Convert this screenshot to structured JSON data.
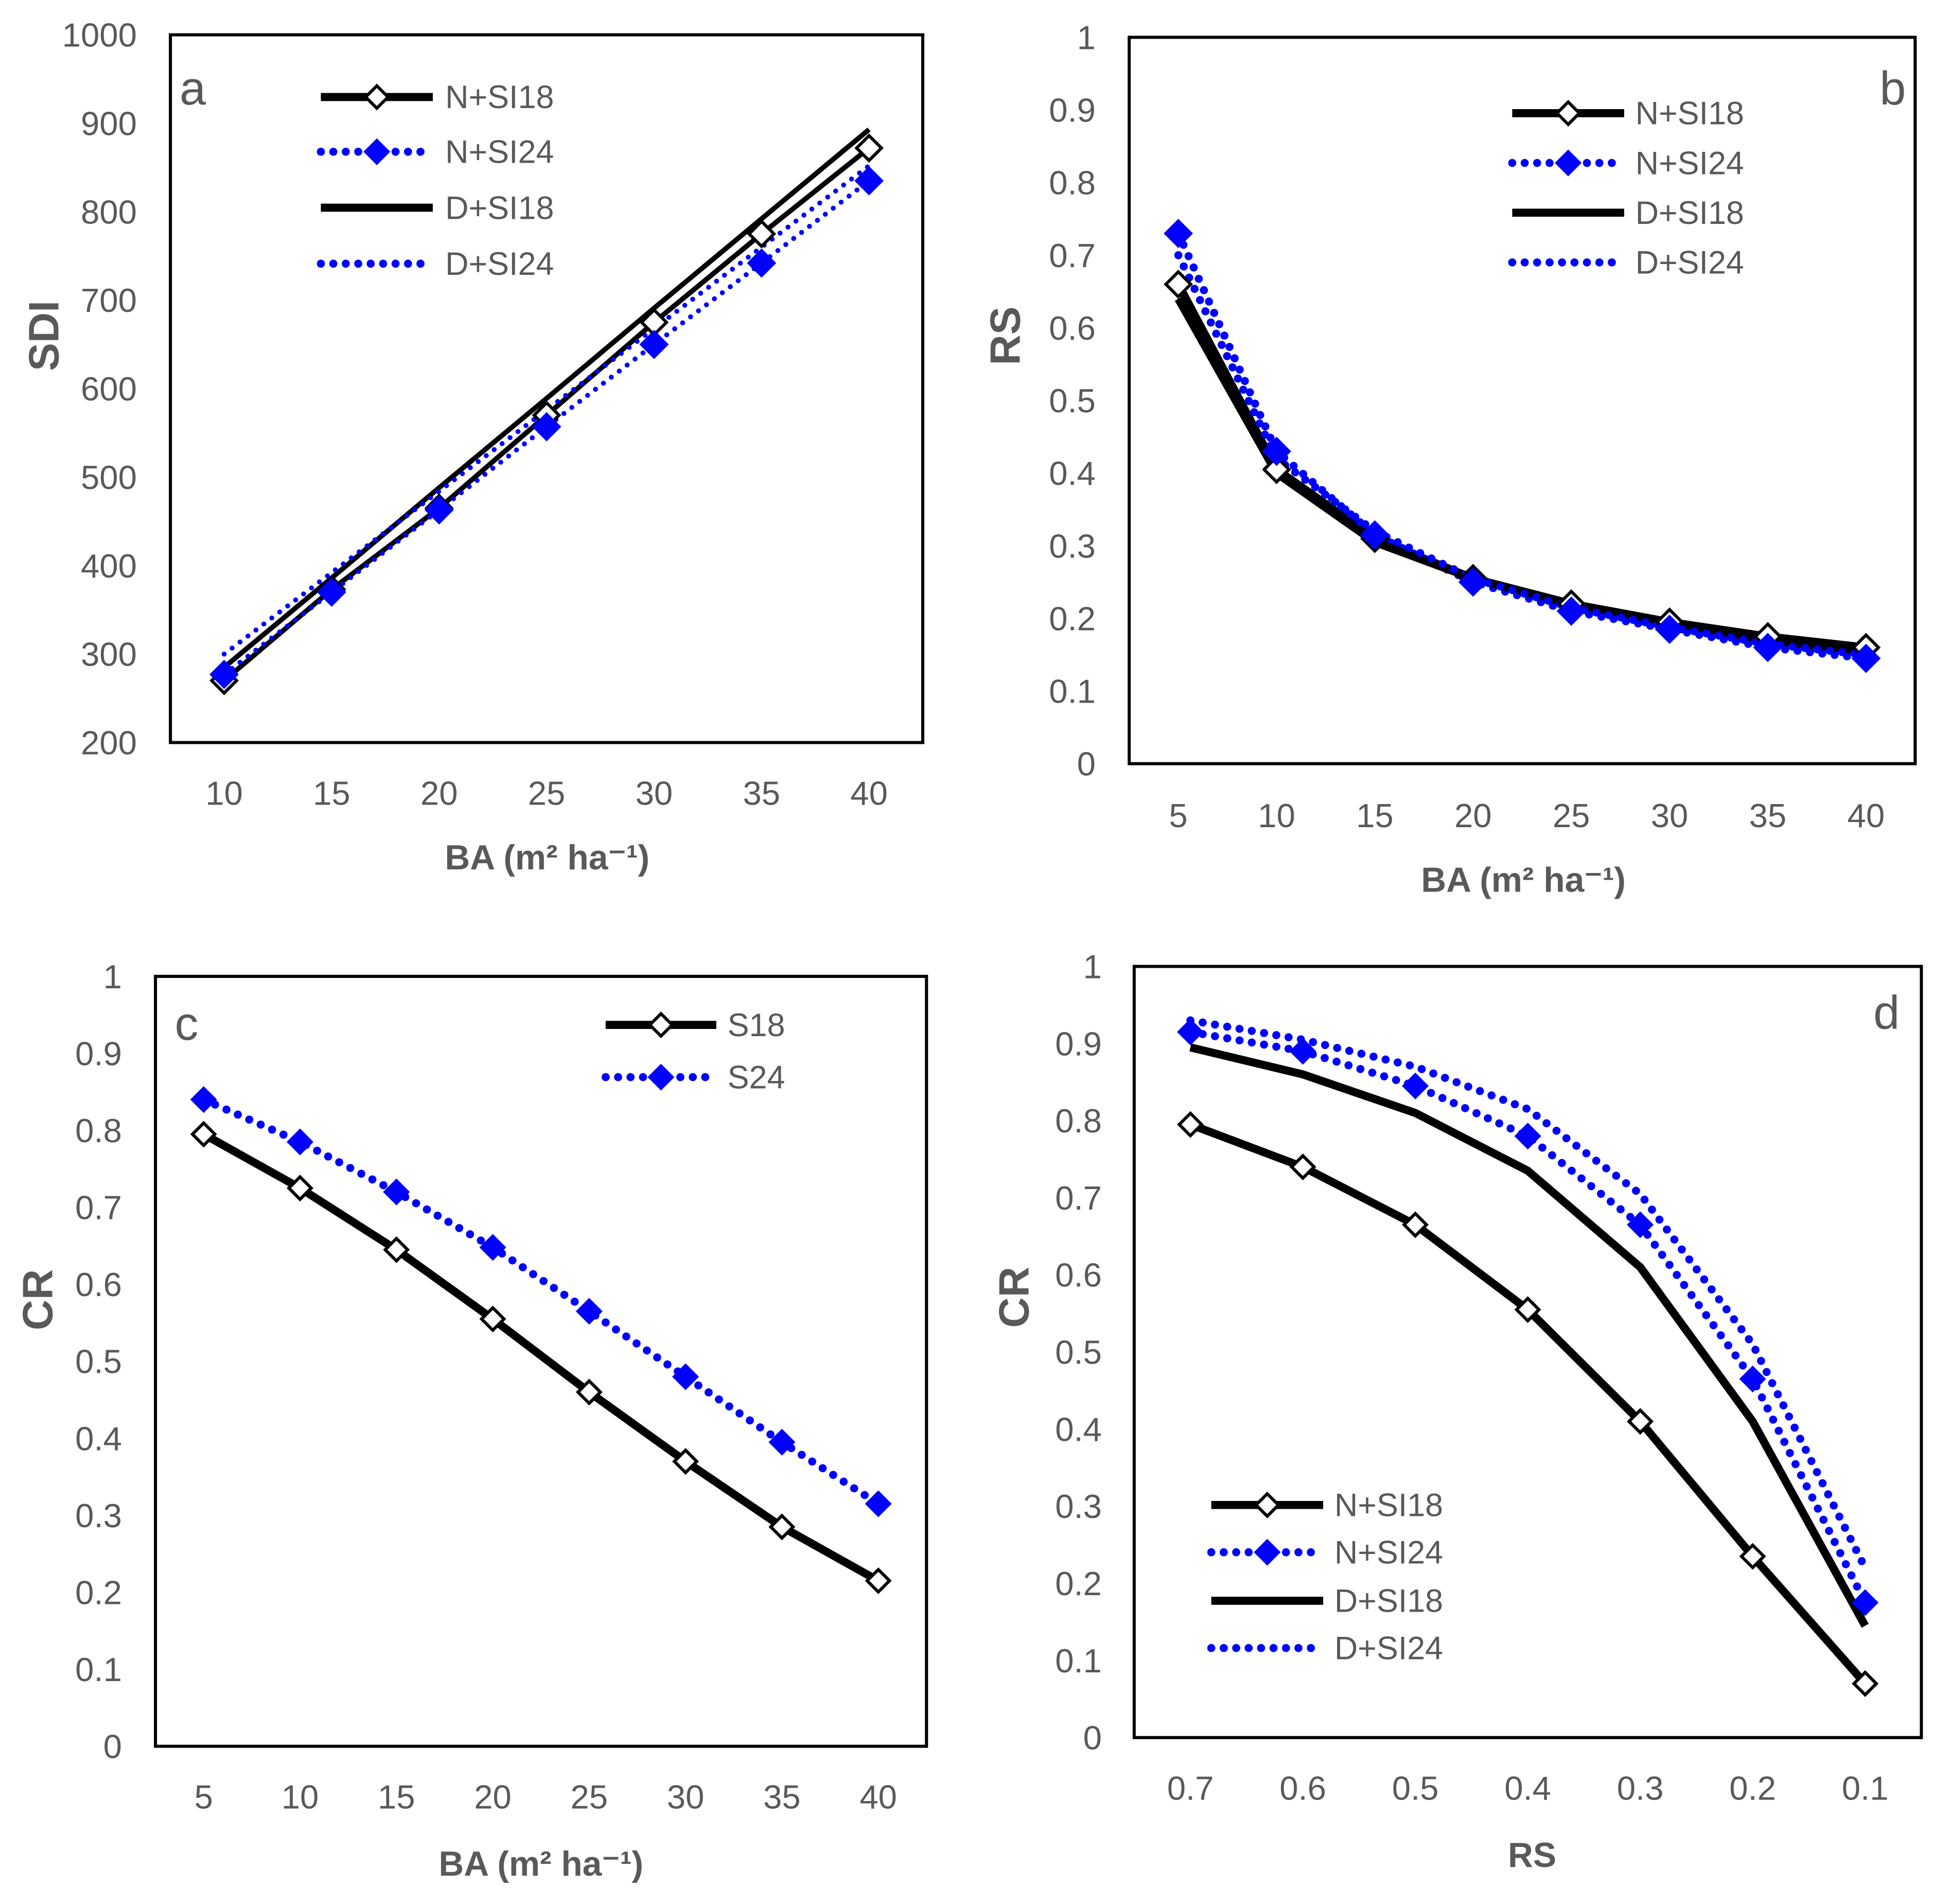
{
  "style": {
    "text_color": "#595959",
    "frame_color": "#000000"
  },
  "chart_data": [
    {
      "panel_label": "a",
      "type": "line",
      "xlabel": "BA (m² ha⁻¹)",
      "ylabel": "SDI",
      "categories": [
        "10",
        "15",
        "20",
        "25",
        "30",
        "35",
        "40"
      ],
      "yticks": [
        "200",
        "300",
        "400",
        "500",
        "600",
        "700",
        "800",
        "900",
        "1000"
      ],
      "ylim": [
        200,
        1000
      ],
      "series": [
        {
          "name": "N+SI18",
          "values": [
            270,
            373,
            465,
            570,
            675,
            775,
            872
          ],
          "color": "#000000",
          "dotted": false,
          "marker": true,
          "marker_fill": "#FFFFFF"
        },
        {
          "name": "N+SI24",
          "values": [
            277,
            370,
            463,
            557,
            650,
            742,
            835
          ],
          "color": "#0000FF",
          "dotted": true,
          "marker": true,
          "marker_fill": "#0000FF"
        },
        {
          "name": "D+SI18",
          "values": [
            285,
            386,
            488,
            589,
            691,
            792,
            893
          ],
          "color": "#000000",
          "dotted": false,
          "marker": false
        },
        {
          "name": "D+SI24",
          "values": [
            300,
            392,
            484,
            576,
            668,
            760,
            852
          ],
          "color": "#0000FF",
          "dotted": true,
          "marker": false
        }
      ]
    },
    {
      "panel_label": "b",
      "type": "line",
      "xlabel": "BA (m² ha⁻¹)",
      "ylabel": "RS",
      "categories": [
        "5",
        "10",
        "15",
        "20",
        "25",
        "30",
        "35",
        "40"
      ],
      "yticks": [
        "0",
        "0.1",
        "0.2",
        "0.3",
        "0.4",
        "0.5",
        "0.6",
        "0.7",
        "0.8",
        "0.9",
        "1"
      ],
      "ylim": [
        0,
        1
      ],
      "series": [
        {
          "name": "N+SI18",
          "values": [
            0.66,
            0.405,
            0.31,
            0.255,
            0.22,
            0.195,
            0.175,
            0.16
          ],
          "color": "#000000",
          "dotted": false,
          "marker": true,
          "marker_fill": "#FFFFFF"
        },
        {
          "name": "N+SI24",
          "values": [
            0.73,
            0.43,
            0.315,
            0.25,
            0.21,
            0.185,
            0.16,
            0.145
          ],
          "color": "#0000FF",
          "dotted": true,
          "marker": true,
          "marker_fill": "#0000FF"
        },
        {
          "name": "D+SI18",
          "values": [
            0.64,
            0.4,
            0.305,
            0.255,
            0.22,
            0.195,
            0.17,
            0.155
          ],
          "color": "#000000",
          "dotted": false,
          "marker": false
        },
        {
          "name": "D+SI24",
          "values": [
            0.7,
            0.42,
            0.32,
            0.255,
            0.215,
            0.188,
            0.165,
            0.15
          ],
          "color": "#0000FF",
          "dotted": true,
          "marker": false
        }
      ]
    },
    {
      "panel_label": "c",
      "type": "line",
      "xlabel": "BA (m² ha⁻¹)",
      "ylabel": "CR",
      "categories": [
        "5",
        "10",
        "15",
        "20",
        "25",
        "30",
        "35",
        "40"
      ],
      "yticks": [
        "0",
        "0.1",
        "0.2",
        "0.3",
        "0.4",
        "0.5",
        "0.6",
        "0.7",
        "0.8",
        "0.9",
        "1"
      ],
      "ylim": [
        0,
        1
      ],
      "series": [
        {
          "name": "S18",
          "values": [
            0.795,
            0.725,
            0.645,
            0.555,
            0.46,
            0.37,
            0.285,
            0.215
          ],
          "color": "#000000",
          "dotted": false,
          "marker": true,
          "marker_fill": "#FFFFFF"
        },
        {
          "name": "S24",
          "values": [
            0.84,
            0.785,
            0.72,
            0.648,
            0.565,
            0.48,
            0.395,
            0.315
          ],
          "color": "#0000FF",
          "dotted": true,
          "marker": true,
          "marker_fill": "#0000FF"
        }
      ]
    },
    {
      "panel_label": "d",
      "type": "line",
      "xlabel": "RS",
      "ylabel": "CR",
      "categories": [
        "0.7",
        "0.6",
        "0.5",
        "0.4",
        "0.3",
        "0.2",
        "0.1"
      ],
      "yticks": [
        "0",
        "0.1",
        "0.2",
        "0.3",
        "0.4",
        "0.5",
        "0.6",
        "0.7",
        "0.8",
        "0.9",
        "1"
      ],
      "ylim": [
        0,
        1
      ],
      "series": [
        {
          "name": "N+SI18",
          "values": [
            0.795,
            0.74,
            0.665,
            0.555,
            0.41,
            0.235,
            0.07
          ],
          "color": "#000000",
          "dotted": false,
          "marker": true,
          "marker_fill": "#FFFFFF"
        },
        {
          "name": "N+SI24",
          "values": [
            0.915,
            0.89,
            0.845,
            0.78,
            0.665,
            0.465,
            0.175
          ],
          "color": "#0000FF",
          "dotted": true,
          "marker": true,
          "marker_fill": "#0000FF"
        },
        {
          "name": "D+SI18",
          "values": [
            0.895,
            0.86,
            0.81,
            0.735,
            0.61,
            0.41,
            0.145
          ],
          "color": "#000000",
          "dotted": false,
          "marker": false
        },
        {
          "name": "D+SI24",
          "values": [
            0.93,
            0.905,
            0.87,
            0.815,
            0.705,
            0.51,
            0.22
          ],
          "color": "#0000FF",
          "dotted": true,
          "marker": false
        }
      ]
    }
  ]
}
